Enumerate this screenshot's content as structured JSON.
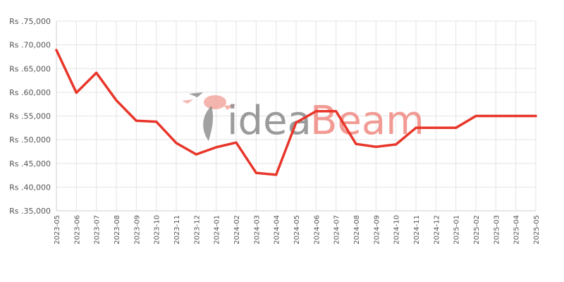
{
  "watermark": {
    "part1": "idea",
    "part2": "Beam"
  },
  "chart_data": {
    "type": "line",
    "title": "",
    "xlabel": "",
    "ylabel": "",
    "ylim": [
      35000,
      75000
    ],
    "y_ticks": [
      {
        "value": 75000,
        "label": "Rs .75,000"
      },
      {
        "value": 70000,
        "label": "Rs .70,000"
      },
      {
        "value": 65000,
        "label": "Rs .65,000"
      },
      {
        "value": 60000,
        "label": "Rs .60,000"
      },
      {
        "value": 55000,
        "label": "Rs .55,000"
      },
      {
        "value": 50000,
        "label": "Rs .50,000"
      },
      {
        "value": 45000,
        "label": "Rs .45,000"
      },
      {
        "value": 40000,
        "label": "Rs .40,000"
      },
      {
        "value": 35000,
        "label": "Rs .35,000"
      }
    ],
    "grid": true,
    "series_color": "#e8362a",
    "x": [
      "2023-05",
      "2023-06",
      "2023-07",
      "2023-08",
      "2023-09",
      "2023-10",
      "2023-11",
      "2023-12",
      "2024-01",
      "2024-02",
      "2024-03",
      "2024-04",
      "2024-05",
      "2024-06",
      "2024-07",
      "2024-08",
      "2024-09",
      "2024-10",
      "2024-11",
      "2024-12",
      "2025-01",
      "2025-02",
      "2025-03",
      "2025-04",
      "2025-05"
    ],
    "series": [
      {
        "values": [
          68900,
          59900,
          64100,
          58300,
          54000,
          53800,
          49300,
          46900,
          48400,
          49400,
          43000,
          42600,
          53600,
          56000,
          56000,
          49100,
          48500,
          49000,
          52500,
          52500,
          52500,
          55000,
          55000,
          55000,
          55000
        ]
      }
    ]
  }
}
